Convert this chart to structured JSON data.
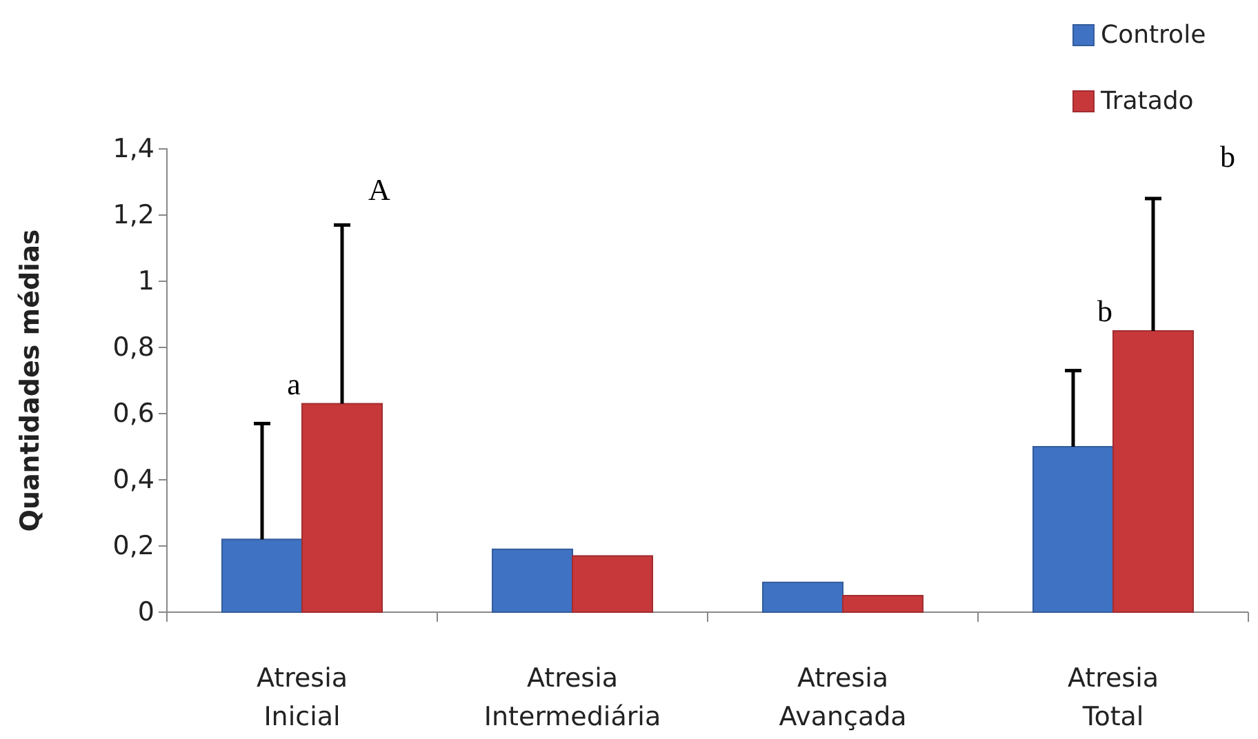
{
  "chart_data": {
    "type": "bar",
    "ylabel": "Quantidades médias",
    "categories": [
      "Atresia Inicial",
      "Atresia Intermediária",
      "Atresia Avançada",
      "Atresia Total"
    ],
    "series": [
      {
        "name": "Controle",
        "color": "#3f72c2",
        "values": [
          0.22,
          0.19,
          0.09,
          0.5
        ],
        "errors": [
          [
            0.22,
            0.57
          ],
          null,
          null,
          [
            0.5,
            0.73
          ]
        ]
      },
      {
        "name": "Tratado",
        "color": "#c7383b",
        "values": [
          0.63,
          0.17,
          0.05,
          0.85
        ],
        "errors": [
          [
            0.63,
            1.17
          ],
          null,
          null,
          [
            0.85,
            1.25
          ]
        ]
      }
    ],
    "ylim": [
      0,
      1.4
    ],
    "yticks": [
      0,
      {
        "value": 0.2,
        "label": "0,2"
      },
      {
        "value": 0.4,
        "label": "0,4"
      },
      {
        "value": 0.6,
        "label": "0,6"
      },
      {
        "value": 0.8,
        "label": "0,8"
      },
      1,
      {
        "value": 1.2,
        "label": "1,2"
      },
      {
        "value": 1.4,
        "label": "1,4"
      }
    ],
    "grid": false,
    "legend": "top right",
    "annotations": [
      {
        "text": "a",
        "x": "Atresia Inicial",
        "y": 0.63
      },
      "A",
      {
        "text": "b",
        "x": "Atresia Total",
        "y": 0.85
      },
      "b"
    ]
  }
}
